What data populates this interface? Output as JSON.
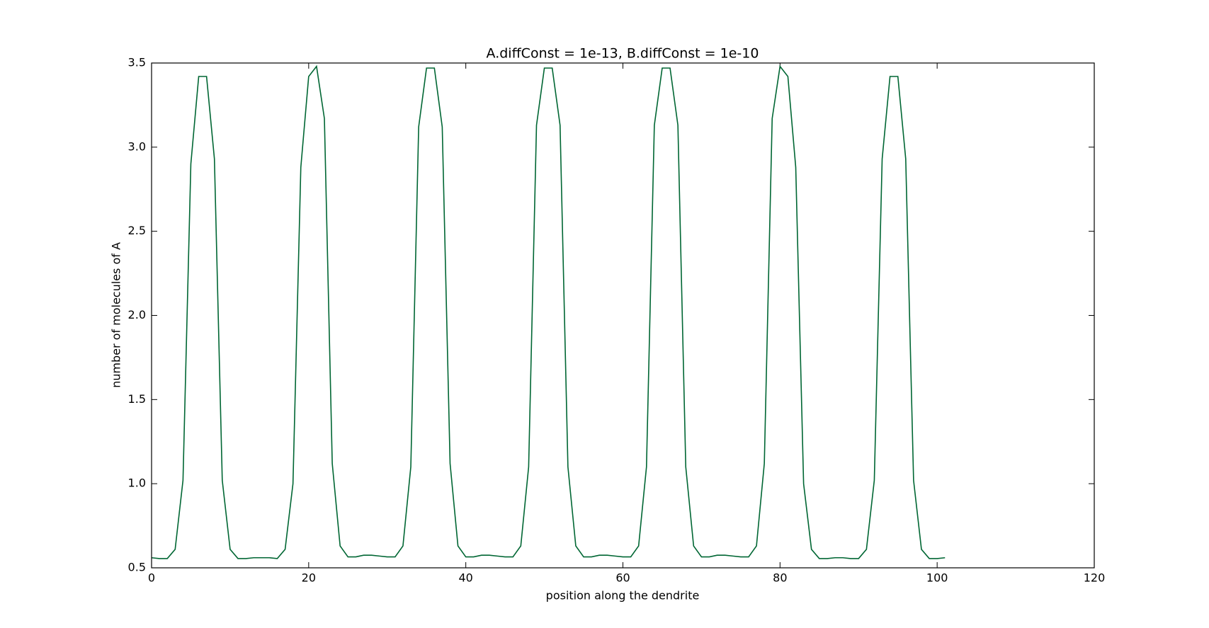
{
  "chart_data": {
    "type": "line",
    "title": "A.diffConst = 1e-13, B.diffConst = 1e-10",
    "x_label": "position along the dendrite",
    "y_label": "number of molecules of A",
    "x": [
      0,
      1,
      2,
      3,
      4,
      5,
      6,
      7,
      8,
      9,
      10,
      11,
      12,
      13,
      14,
      15,
      16,
      17,
      18,
      19,
      20,
      21,
      22,
      23,
      24,
      25,
      26,
      27,
      28,
      29,
      30,
      31,
      32,
      33,
      34,
      35,
      36,
      37,
      38,
      39,
      40,
      41,
      42,
      43,
      44,
      45,
      46,
      47,
      48,
      49,
      50,
      51,
      52,
      53,
      54,
      55,
      56,
      57,
      58,
      59,
      60,
      61,
      62,
      63,
      64,
      65,
      66,
      67,
      68,
      69,
      70,
      71,
      72,
      73,
      74,
      75,
      76,
      77,
      78,
      79,
      80,
      81,
      82,
      83,
      84,
      85,
      86,
      87,
      88,
      89,
      90,
      91,
      92,
      93,
      94,
      95,
      96,
      97,
      98,
      99,
      100,
      101
    ],
    "series": [
      {
        "name": "A",
        "color": "#006633",
        "values": [
          0.56,
          0.555,
          0.555,
          0.61,
          1.02,
          2.9,
          3.42,
          3.42,
          2.93,
          1.02,
          0.61,
          0.555,
          0.555,
          0.56,
          0.56,
          0.56,
          0.555,
          0.61,
          1.0,
          2.88,
          3.42,
          3.48,
          3.17,
          1.12,
          0.63,
          0.565,
          0.565,
          0.575,
          0.575,
          0.57,
          0.565,
          0.565,
          0.63,
          1.1,
          3.12,
          3.47,
          3.47,
          3.12,
          1.12,
          0.63,
          0.565,
          0.565,
          0.575,
          0.575,
          0.57,
          0.565,
          0.565,
          0.63,
          1.1,
          3.13,
          3.47,
          3.47,
          3.13,
          1.1,
          0.63,
          0.565,
          0.565,
          0.575,
          0.575,
          0.57,
          0.565,
          0.565,
          0.63,
          1.1,
          3.13,
          3.47,
          3.47,
          3.13,
          1.1,
          0.63,
          0.565,
          0.565,
          0.575,
          0.575,
          0.57,
          0.565,
          0.565,
          0.63,
          1.12,
          3.17,
          3.48,
          3.42,
          2.88,
          1.0,
          0.61,
          0.555,
          0.555,
          0.56,
          0.56,
          0.555,
          0.555,
          0.61,
          1.02,
          2.93,
          3.42,
          3.42,
          2.93,
          1.02,
          0.61,
          0.555,
          0.555,
          0.56
        ]
      }
    ],
    "xlim": [
      0,
      120
    ],
    "xticks": [
      0,
      20,
      40,
      60,
      80,
      100,
      120
    ],
    "ylim": [
      0.5,
      3.5
    ],
    "yticks": [
      0.5,
      {
        "value": 1,
        "label": "1.0"
      },
      1.5,
      {
        "value": 2,
        "label": "2.0"
      },
      2.5,
      {
        "value": 3,
        "label": "3.0"
      },
      3.5
    ],
    "grid": false
  }
}
